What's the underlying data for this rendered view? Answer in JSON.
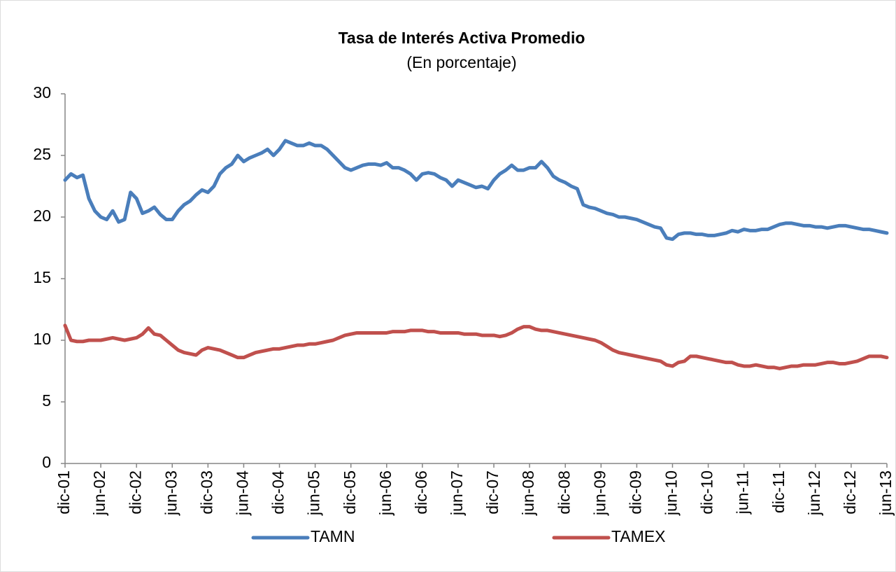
{
  "chart_data": {
    "type": "line",
    "title": "Tasa de Interés Activa Promedio",
    "subtitle": "(En porcentaje)",
    "categories": [
      "dic-01",
      null,
      null,
      null,
      null,
      null,
      "jun-02",
      null,
      null,
      null,
      null,
      null,
      "dic-02",
      null,
      null,
      null,
      null,
      null,
      "jun-03",
      null,
      null,
      null,
      null,
      null,
      "dic-03",
      null,
      null,
      null,
      null,
      null,
      "jun-04",
      null,
      null,
      null,
      null,
      null,
      "dic-04",
      null,
      null,
      null,
      null,
      null,
      "jun-05",
      null,
      null,
      null,
      null,
      null,
      "dic-05",
      null,
      null,
      null,
      null,
      null,
      "jun-06",
      null,
      null,
      null,
      null,
      null,
      "dic-06",
      null,
      null,
      null,
      null,
      null,
      "jun-07",
      null,
      null,
      null,
      null,
      null,
      "dic-07",
      null,
      null,
      null,
      null,
      null,
      "jun-08",
      null,
      null,
      null,
      null,
      null,
      "dic-08",
      null,
      null,
      null,
      null,
      null,
      "jun-09",
      null,
      null,
      null,
      null,
      null,
      "dic-09",
      null,
      null,
      null,
      null,
      null,
      "jun-10",
      null,
      null,
      null,
      null,
      null,
      "dic-10",
      null,
      null,
      null,
      null,
      null,
      "jun-11",
      null,
      null,
      null,
      null,
      null,
      "dic-11",
      null,
      null,
      null,
      null,
      null,
      "jun-12",
      null,
      null,
      null,
      null,
      null,
      "dic-12",
      null,
      null,
      null,
      null,
      null,
      "jun-13"
    ],
    "series": [
      {
        "name": "TAMN",
        "color": "#4a7ebb",
        "values": [
          23,
          23.5,
          23.2,
          23.4,
          21.5,
          20.5,
          20,
          19.8,
          20.5,
          19.6,
          19.8,
          22,
          21.5,
          20.3,
          20.5,
          20.8,
          20.2,
          19.8,
          19.8,
          20.5,
          21,
          21.3,
          21.8,
          22.2,
          22,
          22.5,
          23.5,
          24,
          24.3,
          25,
          24.5,
          24.8,
          25,
          25.2,
          25.5,
          25,
          25.5,
          26.2,
          26,
          25.8,
          25.8,
          26,
          25.8,
          25.8,
          25.5,
          25,
          24.5,
          24,
          23.8,
          24,
          24.2,
          24.3,
          24.3,
          24.2,
          24.4,
          24,
          24,
          23.8,
          23.5,
          23,
          23.5,
          23.6,
          23.5,
          23.2,
          23,
          22.5,
          23,
          22.8,
          22.6,
          22.4,
          22.5,
          22.3,
          23,
          23.5,
          23.8,
          24.2,
          23.8,
          23.8,
          24,
          24,
          24.5,
          24,
          23.3,
          23,
          22.8,
          22.5,
          22.3,
          21,
          20.8,
          20.7,
          20.5,
          20.3,
          20.2,
          20,
          20,
          19.9,
          19.8,
          19.6,
          19.4,
          19.2,
          19.1,
          18.3,
          18.2,
          18.6,
          18.7,
          18.7,
          18.6,
          18.6,
          18.5,
          18.5,
          18.6,
          18.7,
          18.9,
          18.8,
          19,
          18.9,
          18.9,
          19,
          19,
          19.2,
          19.4,
          19.5,
          19.5,
          19.4,
          19.3,
          19.3,
          19.2,
          19.2,
          19.1,
          19.2,
          19.3,
          19.3,
          19.2,
          19.1,
          19,
          19,
          18.9,
          18.8,
          18.7
        ]
      },
      {
        "name": "TAMEX",
        "color": "#c0504d",
        "values": [
          11.2,
          10,
          9.9,
          9.9,
          10,
          10,
          10,
          10.1,
          10.2,
          10.1,
          10,
          10.1,
          10.2,
          10.5,
          11,
          10.5,
          10.4,
          10,
          9.6,
          9.2,
          9,
          8.9,
          8.8,
          9.2,
          9.4,
          9.3,
          9.2,
          9,
          8.8,
          8.6,
          8.6,
          8.8,
          9,
          9.1,
          9.2,
          9.3,
          9.3,
          9.4,
          9.5,
          9.6,
          9.6,
          9.7,
          9.7,
          9.8,
          9.9,
          10,
          10.2,
          10.4,
          10.5,
          10.6,
          10.6,
          10.6,
          10.6,
          10.6,
          10.6,
          10.7,
          10.7,
          10.7,
          10.8,
          10.8,
          10.8,
          10.7,
          10.7,
          10.6,
          10.6,
          10.6,
          10.6,
          10.5,
          10.5,
          10.5,
          10.4,
          10.4,
          10.4,
          10.3,
          10.4,
          10.6,
          10.9,
          11.1,
          11.1,
          10.9,
          10.8,
          10.8,
          10.7,
          10.6,
          10.5,
          10.4,
          10.3,
          10.2,
          10.1,
          10,
          9.8,
          9.5,
          9.2,
          9,
          8.9,
          8.8,
          8.7,
          8.6,
          8.5,
          8.4,
          8.3,
          8,
          7.9,
          8.2,
          8.3,
          8.7,
          8.7,
          8.6,
          8.5,
          8.4,
          8.3,
          8.2,
          8.2,
          8,
          7.9,
          7.9,
          8,
          7.9,
          7.8,
          7.8,
          7.7,
          7.8,
          7.9,
          7.9,
          8,
          8,
          8,
          8.1,
          8.2,
          8.2,
          8.1,
          8.1,
          8.2,
          8.3,
          8.5,
          8.7,
          8.7,
          8.7,
          8.6
        ]
      }
    ],
    "ylim": [
      0,
      30
    ],
    "yticks": [
      0,
      5,
      10,
      15,
      20,
      25,
      30
    ],
    "grid": false,
    "legend": "bottom"
  }
}
